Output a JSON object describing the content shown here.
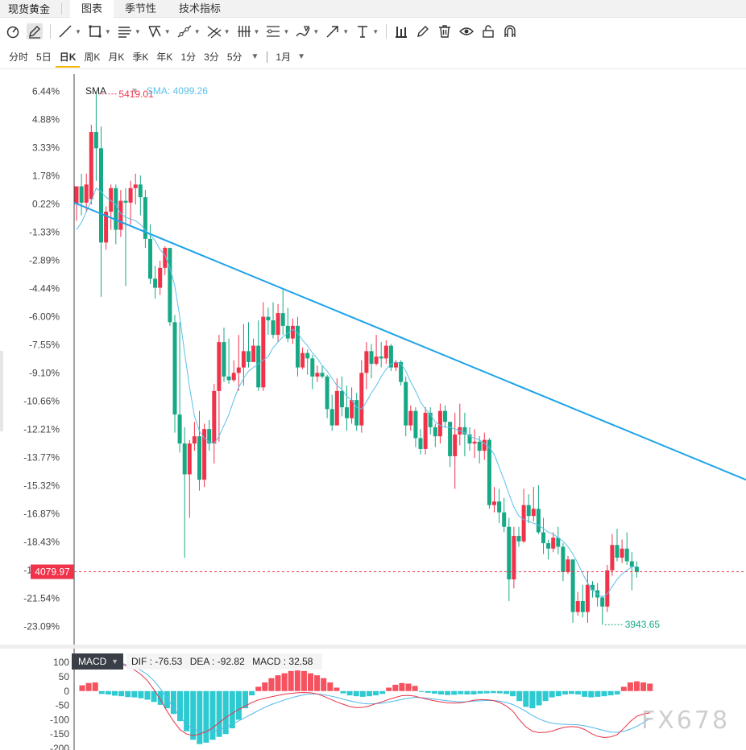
{
  "header": {
    "symbol": "现货黄金",
    "tabs": [
      {
        "label": "图表",
        "active": true
      },
      {
        "label": "季节性",
        "active": false
      },
      {
        "label": "技术指标",
        "active": false
      }
    ]
  },
  "toolbar": {
    "tools": [
      "reset-view-icon",
      "pencil-icon",
      "line-icon",
      "rectangle-icon",
      "parallel-lines-icon",
      "pattern-icon",
      "ray-icon",
      "crossed-lines-icon",
      "fib-icon",
      "channel-icon",
      "brush-icon",
      "arrow-icon",
      "text-icon",
      "bars-icon",
      "edit-icon",
      "trash-icon",
      "eye-icon",
      "lock-icon",
      "magnet-icon"
    ]
  },
  "periods": {
    "items": [
      {
        "label": "分时",
        "active": false
      },
      {
        "label": "5日",
        "active": false
      },
      {
        "label": "日K",
        "active": true
      },
      {
        "label": "周K",
        "active": false
      },
      {
        "label": "月K",
        "active": false
      },
      {
        "label": "季K",
        "active": false
      },
      {
        "label": "年K",
        "active": false
      },
      {
        "label": "1分",
        "active": false
      },
      {
        "label": "3分",
        "active": false
      },
      {
        "label": "5分",
        "active": false
      }
    ],
    "range": "1月"
  },
  "indicator": {
    "name": "SMA",
    "value_text": "SMA: 4099.26"
  },
  "macd_legend": {
    "name": "MACD",
    "dif": "DIF : -76.53",
    "dea": "DEA : -92.82",
    "macd": "MACD : 32.58"
  },
  "watermark": "FX678",
  "colors": {
    "up": "#f0334b",
    "down": "#17a985",
    "sma": "#5bc0ea",
    "trendline": "#1ea3ea",
    "price_marker": "#f0334b",
    "dif": "#e8334a",
    "dea": "#52b8e8"
  },
  "chart_data": [
    {
      "type": "candlestick",
      "y_axis_labels": [
        "6.44%",
        "4.88%",
        "3.33%",
        "1.78%",
        "0.22%",
        "-1.33%",
        "-2.89%",
        "-4.44%",
        "-6.00%",
        "-7.55%",
        "-9.10%",
        "-10.66%",
        "-12.21%",
        "-13.77%",
        "-15.32%",
        "-16.87%",
        "-18.43%",
        "-19.98%",
        "-21.54%",
        "-23.09%"
      ],
      "ylim_pct": [
        -24.1,
        7.4
      ],
      "reference_price": 5105,
      "last_price": "4079.97",
      "max_annotation": "5419.01",
      "min_annotation": "3943.65",
      "sma_label": "SMA",
      "candles_pct": [
        [
          0.22,
          1.2,
          0.9,
          -0.7
        ],
        [
          1.2,
          0.3,
          1.9,
          -0.4
        ],
        [
          0.3,
          1.3,
          1.9,
          -0.2
        ],
        [
          0.5,
          4.2,
          4.6,
          0.2
        ],
        [
          4.2,
          3.3,
          6.3,
          1.5
        ],
        [
          3.3,
          -1.9,
          4.5,
          -4.9
        ],
        [
          -1.9,
          -0.2,
          0.1,
          -2.3
        ],
        [
          -0.2,
          1.1,
          1.3,
          -1.2
        ],
        [
          1.1,
          -1.2,
          1.3,
          -2.0
        ],
        [
          -1.2,
          0.4,
          1.0,
          -1.6
        ],
        [
          0.4,
          0.3,
          1.1,
          -4.3
        ],
        [
          0.3,
          1.1,
          1.5,
          -0.9
        ],
        [
          1.1,
          1.3,
          1.9,
          0.2
        ],
        [
          1.3,
          0.6,
          1.8,
          -0.4
        ],
        [
          0.6,
          -1.7,
          1.0,
          -2.2
        ],
        [
          -1.7,
          -3.9,
          -0.9,
          -4.2
        ],
        [
          -3.9,
          -4.4,
          -3.2,
          -5.0
        ],
        [
          -4.4,
          -3.3,
          -2.9,
          -4.8
        ],
        [
          -3.3,
          -2.2,
          -2.1,
          -3.7
        ],
        [
          -2.2,
          -6.3,
          -2.4,
          -6.5
        ],
        [
          -6.3,
          -11.4,
          -5.9,
          -12.4
        ],
        [
          -11.4,
          -13.0,
          -6.3,
          -13.5
        ],
        [
          -13.0,
          -14.7,
          -12.1,
          -19.3
        ],
        [
          -14.7,
          -13.0,
          -12.8,
          -17.1
        ],
        [
          -13.0,
          -12.6,
          -11.8,
          -13.4
        ],
        [
          -12.6,
          -15.0,
          -11.2,
          -15.6
        ],
        [
          -15.0,
          -12.2,
          -11.9,
          -15.4
        ],
        [
          -12.2,
          -13.0,
          -11.7,
          -13.4
        ],
        [
          -13.0,
          -10.1,
          -9.7,
          -14.1
        ],
        [
          -10.1,
          -7.4,
          -7.0,
          -12.9
        ],
        [
          -7.4,
          -9.3,
          -6.6,
          -9.6
        ],
        [
          -9.3,
          -9.5,
          -7.2,
          -9.7
        ],
        [
          -9.5,
          -9.1,
          -8.4,
          -9.6
        ],
        [
          -9.1,
          -8.8,
          -7.0,
          -10.1
        ],
        [
          -8.8,
          -7.9,
          -6.4,
          -9.8
        ],
        [
          -7.9,
          -8.5,
          -6.3,
          -8.8
        ],
        [
          -8.5,
          -7.6,
          -7.2,
          -8.4
        ],
        [
          -7.6,
          -9.9,
          -6.2,
          -10.1
        ],
        [
          -9.9,
          -6.0,
          -5.2,
          -10.1
        ],
        [
          -6.0,
          -6.2,
          -5.5,
          -7.0
        ],
        [
          -6.2,
          -7.0,
          -5.2,
          -7.2
        ],
        [
          -7.0,
          -5.8,
          -5.3,
          -7.4
        ],
        [
          -5.8,
          -6.5,
          -4.5,
          -7.0
        ],
        [
          -6.5,
          -7.2,
          -5.5,
          -7.4
        ],
        [
          -7.2,
          -6.5,
          -6.1,
          -7.5
        ],
        [
          -6.5,
          -8.8,
          -6.0,
          -9.3
        ],
        [
          -8.8,
          -8.0,
          -7.7,
          -8.9
        ],
        [
          -8.0,
          -8.3,
          -7.8,
          -9.2
        ],
        [
          -8.3,
          -9.3,
          -8.1,
          -10.0
        ],
        [
          -9.3,
          -9.1,
          -8.7,
          -9.6
        ],
        [
          -9.1,
          -9.3,
          -8.7,
          -9.4
        ],
        [
          -9.3,
          -11.1,
          -9.2,
          -11.6
        ],
        [
          -11.1,
          -12.0,
          -10.3,
          -12.3
        ],
        [
          -12.0,
          -10.1,
          -9.4,
          -11.7
        ],
        [
          -10.1,
          -11.0,
          -9.3,
          -11.5
        ],
        [
          -11.0,
          -11.6,
          -9.8,
          -12.3
        ],
        [
          -11.6,
          -10.6,
          -9.9,
          -11.9
        ],
        [
          -10.6,
          -12.0,
          -10.2,
          -12.3
        ],
        [
          -12.0,
          -9.1,
          -8.4,
          -12.4
        ],
        [
          -9.1,
          -7.9,
          -7.4,
          -10.0
        ],
        [
          -7.9,
          -8.6,
          -7.5,
          -9.4
        ],
        [
          -8.6,
          -8.2,
          -7.0,
          -8.7
        ],
        [
          -8.2,
          -8.3,
          -7.4,
          -8.8
        ],
        [
          -8.3,
          -7.6,
          -7.3,
          -8.6
        ],
        [
          -7.6,
          -8.8,
          -7.5,
          -9.0
        ],
        [
          -8.8,
          -8.5,
          -8.4,
          -9.0
        ],
        [
          -8.5,
          -9.6,
          -8.4,
          -9.8
        ],
        [
          -9.6,
          -12.0,
          -9.3,
          -12.6
        ],
        [
          -12.0,
          -11.2,
          -10.9,
          -12.3
        ],
        [
          -11.2,
          -12.7,
          -11.0,
          -13.2
        ],
        [
          -12.7,
          -13.3,
          -12.2,
          -13.6
        ],
        [
          -13.3,
          -11.3,
          -11.0,
          -13.6
        ],
        [
          -11.3,
          -12.1,
          -11.0,
          -12.5
        ],
        [
          -12.1,
          -12.6,
          -11.9,
          -13.2
        ],
        [
          -12.6,
          -11.2,
          -10.8,
          -13.0
        ],
        [
          -11.2,
          -11.8,
          -10.9,
          -12.1
        ],
        [
          -11.8,
          -13.7,
          -11.8,
          -14.3
        ],
        [
          -13.7,
          -12.5,
          -11.3,
          -15.5
        ],
        [
          -12.5,
          -12.1,
          -10.8,
          -13.1
        ],
        [
          -12.1,
          -12.5,
          -11.3,
          -13.7
        ],
        [
          -12.5,
          -13.0,
          -12.1,
          -13.4
        ],
        [
          -13.0,
          -12.9,
          -12.2,
          -13.8
        ],
        [
          -12.9,
          -13.4,
          -12.6,
          -14.1
        ],
        [
          -13.4,
          -12.8,
          -12.4,
          -13.9
        ],
        [
          -12.8,
          -16.4,
          -12.7,
          -16.6
        ],
        [
          -16.4,
          -16.2,
          -15.4,
          -16.8
        ],
        [
          -16.2,
          -16.8,
          -15.5,
          -17.4
        ],
        [
          -16.8,
          -17.6,
          -16.0,
          -17.9
        ],
        [
          -17.6,
          -20.5,
          -17.1,
          -21.7
        ],
        [
          -20.5,
          -18.1,
          -17.6,
          -21.0
        ],
        [
          -18.1,
          -18.4,
          -17.6,
          -18.7
        ],
        [
          -18.4,
          -16.4,
          -15.5,
          -18.5
        ],
        [
          -16.4,
          -17.0,
          -15.8,
          -17.4
        ],
        [
          -17.0,
          -16.6,
          -15.4,
          -17.3
        ],
        [
          -16.6,
          -17.9,
          -15.3,
          -18.0
        ],
        [
          -17.9,
          -18.5,
          -17.1,
          -19.1
        ],
        [
          -18.5,
          -18.8,
          -18.3,
          -19.4
        ],
        [
          -18.8,
          -18.2,
          -17.9,
          -19.0
        ],
        [
          -18.2,
          -18.7,
          -17.6,
          -19.1
        ],
        [
          -18.7,
          -20.1,
          -18.5,
          -20.6
        ],
        [
          -20.1,
          -19.4,
          -19.2,
          -20.2
        ],
        [
          -19.4,
          -22.3,
          -19.4,
          -22.9
        ],
        [
          -22.3,
          -21.7,
          -21.2,
          -22.5
        ],
        [
          -21.7,
          -22.3,
          -20.8,
          -22.6
        ],
        [
          -22.3,
          -20.8,
          -20.1,
          -22.9
        ],
        [
          -20.8,
          -21.1,
          -20.6,
          -21.5
        ],
        [
          -21.1,
          -21.5,
          -20.7,
          -22.0
        ],
        [
          -21.5,
          -22.0,
          -21.4,
          -23.0
        ],
        [
          -22.0,
          -20.0,
          -19.7,
          -22.3
        ],
        [
          -20.0,
          -18.6,
          -18.0,
          -20.3
        ],
        [
          -18.6,
          -19.3,
          -17.7,
          -19.5
        ],
        [
          -19.3,
          -18.8,
          -18.3,
          -19.6
        ],
        [
          -18.8,
          -19.5,
          -17.9,
          -19.7
        ],
        [
          -19.5,
          -19.8,
          -19.0,
          -21.1
        ],
        [
          -19.8,
          -20.1,
          -19.5,
          -20.4
        ]
      ],
      "sma_pct": [
        -1.2,
        -0.8,
        -0.2,
        0.4,
        1.1,
        0.9,
        0.6,
        0.4,
        0.2,
        -0.3,
        -0.5,
        -0.6,
        -0.7,
        -0.9,
        -1.2,
        -1.5,
        -1.8,
        -2.3,
        -2.6,
        -3.3,
        -4.3,
        -6.0,
        -8.0,
        -9.9,
        -11.5,
        -12.3,
        -12.7,
        -12.9,
        -13.0,
        -12.6,
        -12.0,
        -11.4,
        -10.6,
        -9.9,
        -9.4,
        -9.0,
        -8.8,
        -8.6,
        -8.4,
        -8.2,
        -7.7,
        -7.4,
        -7.1,
        -6.9,
        -6.7,
        -6.9,
        -7.3,
        -7.6,
        -8.0,
        -8.3,
        -8.7,
        -9.0,
        -9.4,
        -9.8,
        -10.0,
        -10.4,
        -10.6,
        -11.0,
        -11.1,
        -10.7,
        -10.2,
        -9.8,
        -9.3,
        -8.9,
        -8.6,
        -8.5,
        -8.6,
        -9.0,
        -9.6,
        -10.1,
        -10.7,
        -11.1,
        -11.4,
        -11.8,
        -12.0,
        -12.1,
        -12.1,
        -12.2,
        -12.3,
        -12.4,
        -12.6,
        -12.7,
        -12.8,
        -13.0,
        -13.2,
        -13.6,
        -14.3,
        -15.0,
        -15.8,
        -16.5,
        -17.0,
        -17.2,
        -17.3,
        -17.4,
        -17.5,
        -17.7,
        -17.9,
        -18.0,
        -18.2,
        -18.4,
        -18.7,
        -19.1,
        -19.6,
        -20.2,
        -20.7,
        -21.1,
        -21.3,
        -21.5,
        -21.3,
        -20.9,
        -20.5,
        -20.2,
        -20.0,
        -19.8,
        -19.8
      ]
    },
    {
      "type": "macd",
      "y_axis_labels": [
        "100",
        "50",
        "0",
        "-50",
        "-100",
        "-150",
        "-200"
      ],
      "ylim": [
        -200,
        120
      ],
      "histogram": [
        20,
        28,
        30,
        -10,
        -12,
        -16,
        -18,
        -21,
        -22,
        -25,
        -30,
        -38,
        -48,
        -60,
        -80,
        -105,
        -140,
        -170,
        -185,
        -180,
        -170,
        -160,
        -150,
        -130,
        -100,
        -60,
        -15,
        15,
        30,
        45,
        55,
        62,
        70,
        72,
        70,
        62,
        55,
        45,
        30,
        12,
        -8,
        -15,
        -18,
        -20,
        -18,
        -15,
        -10,
        12,
        22,
        28,
        26,
        18,
        -3,
        -6,
        -9,
        -12,
        -14,
        -13,
        -11,
        -12,
        -12,
        -9,
        -8,
        -7,
        -8,
        -10,
        -18,
        -35,
        -55,
        -60,
        -50,
        -35,
        -22,
        -18,
        -12,
        -10,
        -12,
        -20,
        -22,
        -20,
        -18,
        -15,
        -12,
        15,
        30,
        34,
        30,
        26
      ],
      "dif": [
        102,
        112,
        118,
        114,
        108,
        101,
        95,
        85,
        74,
        58,
        36,
        5,
        -30,
        -70,
        -105,
        -135,
        -150,
        -155,
        -150,
        -142,
        -128,
        -110,
        -92,
        -78,
        -64,
        -52,
        -40,
        -31,
        -25,
        -20,
        -15,
        -11,
        -8,
        -6,
        -5,
        -6,
        -10,
        -18,
        -28,
        -38,
        -46,
        -54,
        -58,
        -57,
        -52,
        -44,
        -37,
        -29,
        -22,
        -16,
        -15,
        -18,
        -24,
        -29,
        -34,
        -38,
        -41,
        -42,
        -41,
        -37,
        -32,
        -30,
        -30,
        -33,
        -40,
        -52,
        -70,
        -100,
        -125,
        -140,
        -145,
        -144,
        -140,
        -132,
        -126,
        -124,
        -126,
        -134,
        -148,
        -158,
        -162,
        -160,
        -152,
        -130,
        -106,
        -88,
        -80,
        -76
      ],
      "dea": [
        95,
        100,
        104,
        105,
        104,
        101,
        97,
        91,
        83,
        72,
        58,
        36,
        8,
        -25,
        -58,
        -90,
        -115,
        -132,
        -140,
        -142,
        -140,
        -135,
        -126,
        -116,
        -104,
        -92,
        -80,
        -68,
        -57,
        -47,
        -39,
        -31,
        -24,
        -18,
        -13,
        -10,
        -10,
        -13,
        -17,
        -22,
        -28,
        -34,
        -39,
        -43,
        -45,
        -44,
        -42,
        -38,
        -34,
        -29,
        -25,
        -22,
        -23,
        -25,
        -28,
        -31,
        -34,
        -36,
        -38,
        -37,
        -35,
        -34,
        -33,
        -33,
        -35,
        -40,
        -47,
        -58,
        -71,
        -85,
        -97,
        -106,
        -112,
        -115,
        -116,
        -117,
        -118,
        -121,
        -126,
        -132,
        -138,
        -143,
        -144,
        -140,
        -133,
        -123,
        -110,
        -95
      ]
    }
  ]
}
